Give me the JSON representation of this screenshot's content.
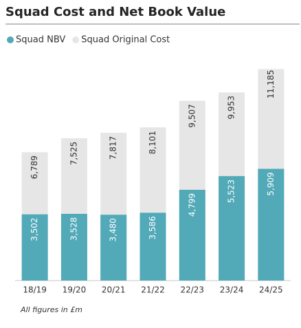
{
  "chart_data": {
    "type": "bar",
    "barmode": "overlay",
    "title": "Squad Cost and Net Book Value",
    "footnote": "All figures in £m",
    "categories": [
      "18/19",
      "19/20",
      "20/21",
      "21/22",
      "22/23",
      "23/24",
      "24/25"
    ],
    "series": [
      {
        "name": "Squad NBV",
        "color": "#52a9b8",
        "values": [
          3502,
          3528,
          3480,
          3586,
          4799,
          5523,
          5909
        ],
        "value_labels": [
          "3,502",
          "3,528",
          "3,480",
          "3,586",
          "4,799",
          "5,523",
          "5,909"
        ]
      },
      {
        "name": "Squad Original Cost",
        "color": "#e6e6e6",
        "values": [
          6789,
          7525,
          7817,
          8101,
          9507,
          9953,
          11185
        ],
        "value_labels": [
          "6,789",
          "7,525",
          "7,817",
          "8,101",
          "9,507",
          "9,953",
          "11,185"
        ]
      }
    ],
    "ylim": [
      0,
      12000
    ],
    "legend": "top-left"
  }
}
